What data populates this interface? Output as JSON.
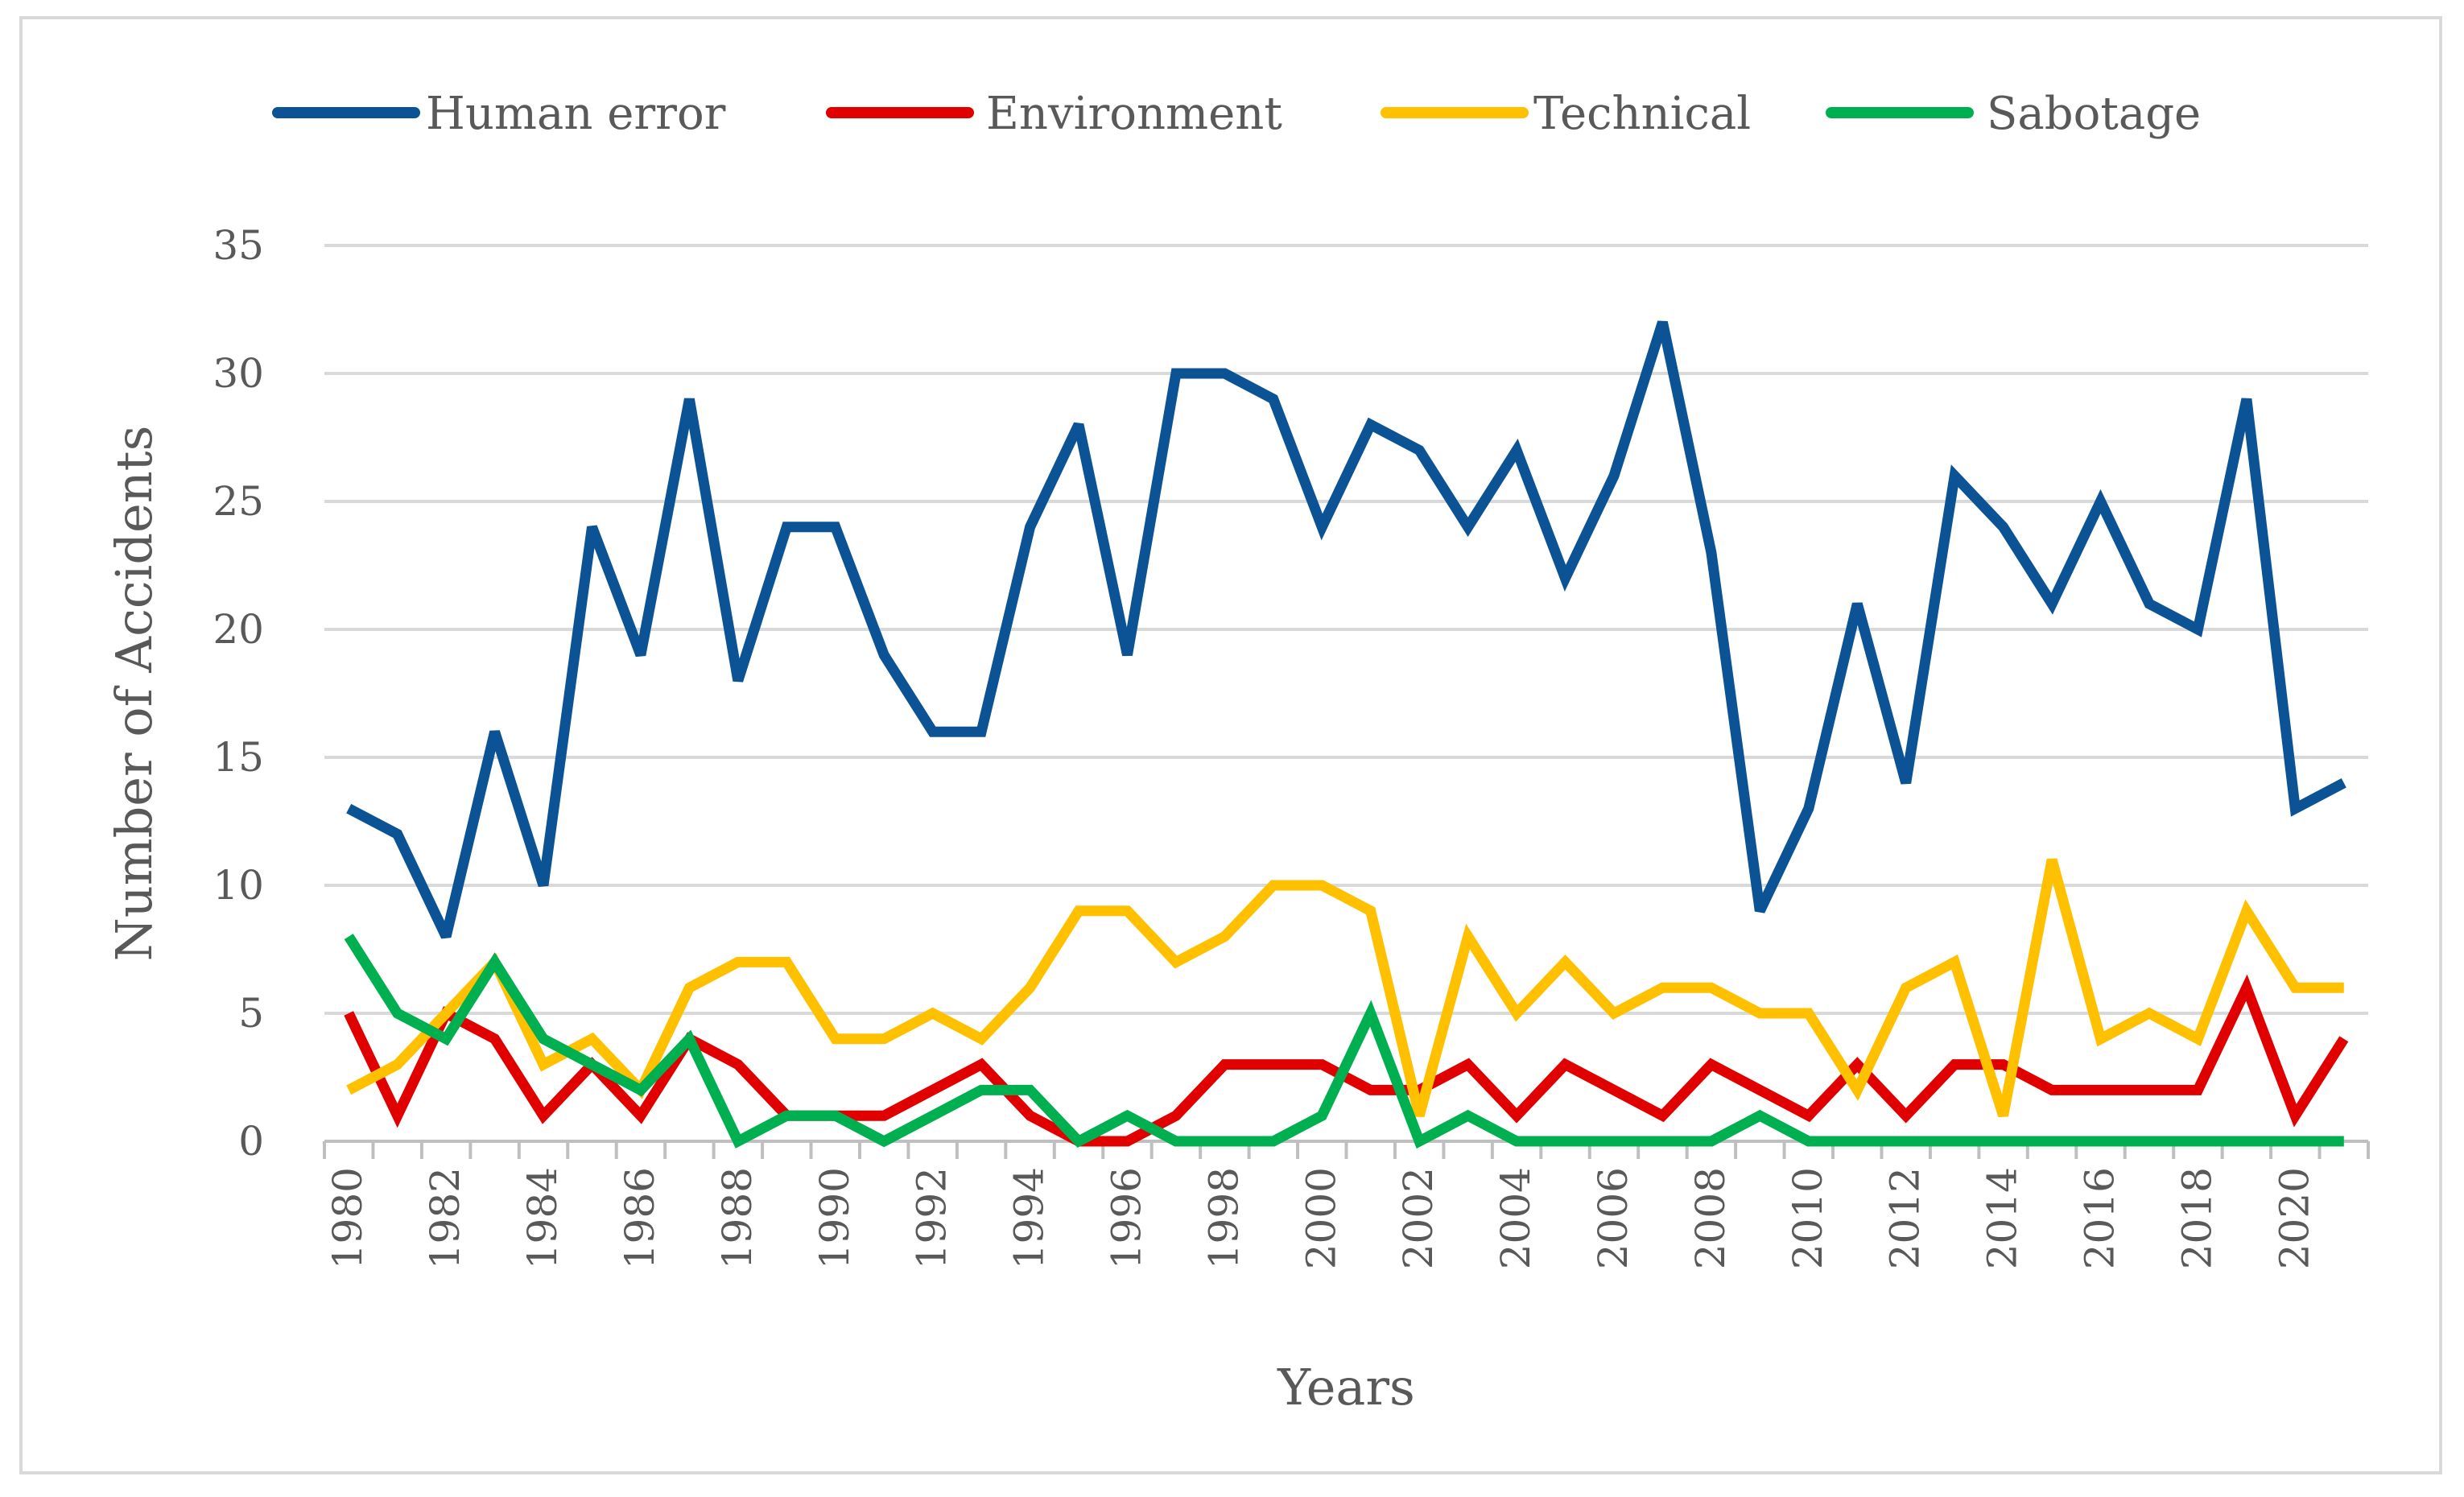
{
  "chart_data": {
    "type": "line",
    "title": "",
    "xlabel": "Years",
    "ylabel": "Number of Accidents",
    "ylim": [
      0,
      35
    ],
    "yticks": [
      0,
      5,
      10,
      15,
      20,
      25,
      30,
      35
    ],
    "x": [
      1980,
      1981,
      1982,
      1983,
      1984,
      1985,
      1986,
      1987,
      1988,
      1989,
      1990,
      1991,
      1992,
      1993,
      1994,
      1995,
      1996,
      1997,
      1998,
      1999,
      2000,
      2001,
      2002,
      2003,
      2004,
      2005,
      2006,
      2007,
      2008,
      2009,
      2010,
      2011,
      2012,
      2013,
      2014,
      2015,
      2016,
      2017,
      2018,
      2019,
      2020,
      2021
    ],
    "xtick_labels": [
      "1980",
      "1982",
      "1984",
      "1986",
      "1988",
      "1990",
      "1992",
      "1994",
      "1996",
      "1998",
      "2000",
      "2002",
      "2004",
      "2006",
      "2008",
      "2010",
      "2012",
      "2014",
      "2016",
      "2018",
      "2020"
    ],
    "grid": true,
    "legend_position": "top",
    "series": [
      {
        "name": "Human error",
        "color": "#0b5394",
        "values": [
          13,
          12,
          8,
          16,
          10,
          24,
          19,
          29,
          18,
          24,
          24,
          19,
          16,
          16,
          24,
          28,
          19,
          30,
          30,
          29,
          24,
          28,
          27,
          24,
          27,
          22,
          26,
          32,
          23,
          9,
          13,
          21,
          14,
          26,
          24,
          21,
          25,
          21,
          20,
          29,
          13,
          14
        ]
      },
      {
        "name": "Environment",
        "color": "#e00000",
        "values": [
          5,
          1,
          5,
          4,
          1,
          3,
          1,
          4,
          3,
          1,
          1,
          1,
          2,
          3,
          1,
          0,
          0,
          1,
          3,
          3,
          3,
          2,
          2,
          3,
          1,
          3,
          2,
          1,
          3,
          2,
          1,
          3,
          1,
          3,
          3,
          2,
          2,
          2,
          2,
          6,
          1,
          4
        ]
      },
      {
        "name": "Technical",
        "color": "#ffc000",
        "values": [
          2,
          3,
          5,
          7,
          3,
          4,
          2,
          6,
          7,
          7,
          4,
          4,
          5,
          4,
          6,
          9,
          9,
          7,
          8,
          10,
          10,
          9,
          1,
          8,
          5,
          7,
          5,
          6,
          6,
          5,
          5,
          2,
          6,
          7,
          1,
          11,
          4,
          5,
          4,
          9,
          6,
          6
        ]
      },
      {
        "name": "Sabotage",
        "color": "#00b050",
        "values": [
          8,
          5,
          4,
          7,
          4,
          3,
          2,
          4,
          0,
          1,
          1,
          0,
          1,
          2,
          2,
          0,
          1,
          0,
          0,
          0,
          1,
          5,
          0,
          1,
          0,
          0,
          0,
          0,
          0,
          1,
          0,
          0,
          0,
          0,
          0,
          0,
          0,
          0,
          0,
          0,
          0,
          0
        ]
      }
    ]
  }
}
